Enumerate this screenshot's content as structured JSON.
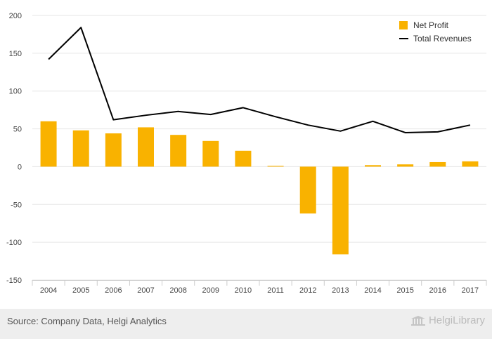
{
  "chart_data": {
    "type": "bar",
    "categories": [
      "2004",
      "2005",
      "2006",
      "2007",
      "2008",
      "2009",
      "2010",
      "2011",
      "2012",
      "2013",
      "2014",
      "2015",
      "2016",
      "2017"
    ],
    "series": [
      {
        "name": "Net Profit",
        "kind": "bar",
        "color": "#f9b200",
        "values": [
          60,
          48,
          44,
          52,
          42,
          34,
          21,
          1,
          -62,
          -116,
          2,
          3,
          6,
          7
        ]
      },
      {
        "name": "Total Revenues",
        "kind": "line",
        "color": "#000000",
        "values": [
          142,
          184,
          62,
          68,
          73,
          69,
          78,
          66,
          55,
          47,
          60,
          45,
          46,
          55
        ]
      }
    ],
    "ylim": [
      -150,
      200
    ],
    "yticks": [
      200,
      150,
      100,
      50,
      0,
      -50,
      -100,
      -150
    ],
    "ytick_labels": [
      "200",
      "150",
      "100",
      "50",
      "0",
      "-50",
      "-100",
      "-150"
    ],
    "grid": true,
    "legend_position": "top-right"
  },
  "footer": {
    "source": "Source: Company Data, Helgi Analytics",
    "brand": "HelgiLibrary",
    "brand_icon": "library-building-icon"
  }
}
